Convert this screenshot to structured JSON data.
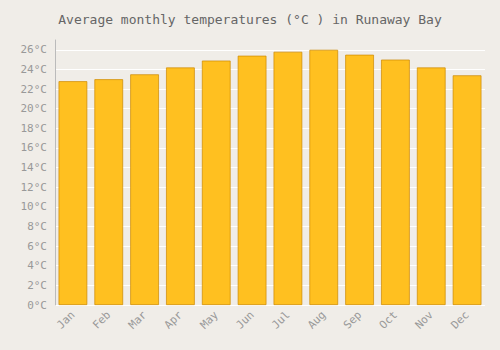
{
  "chart_data": {
    "type": "bar",
    "title": "Average monthly temperatures (°C ) in Runaway Bay",
    "categories": [
      "Jan",
      "Feb",
      "Mar",
      "Apr",
      "May",
      "Jun",
      "Jul",
      "Aug",
      "Sep",
      "Oct",
      "Nov",
      "Dec"
    ],
    "values": [
      22.8,
      23.0,
      23.5,
      24.2,
      24.9,
      25.4,
      25.8,
      26.0,
      25.5,
      25.0,
      24.2,
      23.4
    ],
    "color": "#FFC020",
    "ylim": [
      0,
      27
    ],
    "yticks": [
      {
        "value": 0,
        "label": "0°C"
      },
      {
        "value": 2,
        "label": "2°C"
      },
      {
        "value": 4,
        "label": "4°C"
      },
      {
        "value": 6,
        "label": "6°C"
      },
      {
        "value": 8,
        "label": "8°C"
      },
      {
        "value": 10,
        "label": "10°C"
      },
      {
        "value": 12,
        "label": "12°C"
      },
      {
        "value": 14,
        "label": "14°C"
      },
      {
        "value": 16,
        "label": "16°C"
      },
      {
        "value": 18,
        "label": "18°C"
      },
      {
        "value": 20,
        "label": "20°C"
      },
      {
        "value": 22,
        "label": "22°C"
      },
      {
        "value": 24,
        "label": "24°C"
      },
      {
        "value": 26,
        "label": "26°C"
      }
    ],
    "grid": true
  }
}
